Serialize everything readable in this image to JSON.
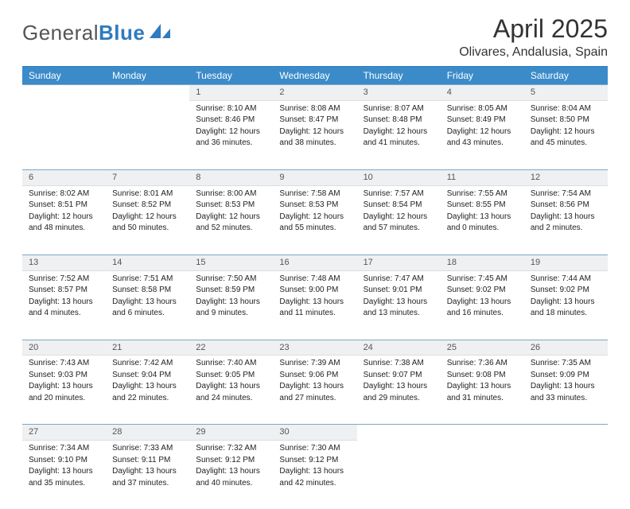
{
  "brand": {
    "part1": "General",
    "part2": "Blue"
  },
  "title": "April 2025",
  "location": "Olivares, Andalusia, Spain",
  "colors": {
    "accent": "#3b8bc9",
    "accent_dark": "#2e7bbf",
    "daynum_bg": "#eef0f1",
    "text": "#222222"
  },
  "day_headers": [
    "Sunday",
    "Monday",
    "Tuesday",
    "Wednesday",
    "Thursday",
    "Friday",
    "Saturday"
  ],
  "weeks": [
    [
      null,
      null,
      {
        "n": "1",
        "sr": "Sunrise: 8:10 AM",
        "ss": "Sunset: 8:46 PM",
        "dl1": "Daylight: 12 hours",
        "dl2": "and 36 minutes."
      },
      {
        "n": "2",
        "sr": "Sunrise: 8:08 AM",
        "ss": "Sunset: 8:47 PM",
        "dl1": "Daylight: 12 hours",
        "dl2": "and 38 minutes."
      },
      {
        "n": "3",
        "sr": "Sunrise: 8:07 AM",
        "ss": "Sunset: 8:48 PM",
        "dl1": "Daylight: 12 hours",
        "dl2": "and 41 minutes."
      },
      {
        "n": "4",
        "sr": "Sunrise: 8:05 AM",
        "ss": "Sunset: 8:49 PM",
        "dl1": "Daylight: 12 hours",
        "dl2": "and 43 minutes."
      },
      {
        "n": "5",
        "sr": "Sunrise: 8:04 AM",
        "ss": "Sunset: 8:50 PM",
        "dl1": "Daylight: 12 hours",
        "dl2": "and 45 minutes."
      }
    ],
    [
      {
        "n": "6",
        "sr": "Sunrise: 8:02 AM",
        "ss": "Sunset: 8:51 PM",
        "dl1": "Daylight: 12 hours",
        "dl2": "and 48 minutes."
      },
      {
        "n": "7",
        "sr": "Sunrise: 8:01 AM",
        "ss": "Sunset: 8:52 PM",
        "dl1": "Daylight: 12 hours",
        "dl2": "and 50 minutes."
      },
      {
        "n": "8",
        "sr": "Sunrise: 8:00 AM",
        "ss": "Sunset: 8:53 PM",
        "dl1": "Daylight: 12 hours",
        "dl2": "and 52 minutes."
      },
      {
        "n": "9",
        "sr": "Sunrise: 7:58 AM",
        "ss": "Sunset: 8:53 PM",
        "dl1": "Daylight: 12 hours",
        "dl2": "and 55 minutes."
      },
      {
        "n": "10",
        "sr": "Sunrise: 7:57 AM",
        "ss": "Sunset: 8:54 PM",
        "dl1": "Daylight: 12 hours",
        "dl2": "and 57 minutes."
      },
      {
        "n": "11",
        "sr": "Sunrise: 7:55 AM",
        "ss": "Sunset: 8:55 PM",
        "dl1": "Daylight: 13 hours",
        "dl2": "and 0 minutes."
      },
      {
        "n": "12",
        "sr": "Sunrise: 7:54 AM",
        "ss": "Sunset: 8:56 PM",
        "dl1": "Daylight: 13 hours",
        "dl2": "and 2 minutes."
      }
    ],
    [
      {
        "n": "13",
        "sr": "Sunrise: 7:52 AM",
        "ss": "Sunset: 8:57 PM",
        "dl1": "Daylight: 13 hours",
        "dl2": "and 4 minutes."
      },
      {
        "n": "14",
        "sr": "Sunrise: 7:51 AM",
        "ss": "Sunset: 8:58 PM",
        "dl1": "Daylight: 13 hours",
        "dl2": "and 6 minutes."
      },
      {
        "n": "15",
        "sr": "Sunrise: 7:50 AM",
        "ss": "Sunset: 8:59 PM",
        "dl1": "Daylight: 13 hours",
        "dl2": "and 9 minutes."
      },
      {
        "n": "16",
        "sr": "Sunrise: 7:48 AM",
        "ss": "Sunset: 9:00 PM",
        "dl1": "Daylight: 13 hours",
        "dl2": "and 11 minutes."
      },
      {
        "n": "17",
        "sr": "Sunrise: 7:47 AM",
        "ss": "Sunset: 9:01 PM",
        "dl1": "Daylight: 13 hours",
        "dl2": "and 13 minutes."
      },
      {
        "n": "18",
        "sr": "Sunrise: 7:45 AM",
        "ss": "Sunset: 9:02 PM",
        "dl1": "Daylight: 13 hours",
        "dl2": "and 16 minutes."
      },
      {
        "n": "19",
        "sr": "Sunrise: 7:44 AM",
        "ss": "Sunset: 9:02 PM",
        "dl1": "Daylight: 13 hours",
        "dl2": "and 18 minutes."
      }
    ],
    [
      {
        "n": "20",
        "sr": "Sunrise: 7:43 AM",
        "ss": "Sunset: 9:03 PM",
        "dl1": "Daylight: 13 hours",
        "dl2": "and 20 minutes."
      },
      {
        "n": "21",
        "sr": "Sunrise: 7:42 AM",
        "ss": "Sunset: 9:04 PM",
        "dl1": "Daylight: 13 hours",
        "dl2": "and 22 minutes."
      },
      {
        "n": "22",
        "sr": "Sunrise: 7:40 AM",
        "ss": "Sunset: 9:05 PM",
        "dl1": "Daylight: 13 hours",
        "dl2": "and 24 minutes."
      },
      {
        "n": "23",
        "sr": "Sunrise: 7:39 AM",
        "ss": "Sunset: 9:06 PM",
        "dl1": "Daylight: 13 hours",
        "dl2": "and 27 minutes."
      },
      {
        "n": "24",
        "sr": "Sunrise: 7:38 AM",
        "ss": "Sunset: 9:07 PM",
        "dl1": "Daylight: 13 hours",
        "dl2": "and 29 minutes."
      },
      {
        "n": "25",
        "sr": "Sunrise: 7:36 AM",
        "ss": "Sunset: 9:08 PM",
        "dl1": "Daylight: 13 hours",
        "dl2": "and 31 minutes."
      },
      {
        "n": "26",
        "sr": "Sunrise: 7:35 AM",
        "ss": "Sunset: 9:09 PM",
        "dl1": "Daylight: 13 hours",
        "dl2": "and 33 minutes."
      }
    ],
    [
      {
        "n": "27",
        "sr": "Sunrise: 7:34 AM",
        "ss": "Sunset: 9:10 PM",
        "dl1": "Daylight: 13 hours",
        "dl2": "and 35 minutes."
      },
      {
        "n": "28",
        "sr": "Sunrise: 7:33 AM",
        "ss": "Sunset: 9:11 PM",
        "dl1": "Daylight: 13 hours",
        "dl2": "and 37 minutes."
      },
      {
        "n": "29",
        "sr": "Sunrise: 7:32 AM",
        "ss": "Sunset: 9:12 PM",
        "dl1": "Daylight: 13 hours",
        "dl2": "and 40 minutes."
      },
      {
        "n": "30",
        "sr": "Sunrise: 7:30 AM",
        "ss": "Sunset: 9:12 PM",
        "dl1": "Daylight: 13 hours",
        "dl2": "and 42 minutes."
      },
      null,
      null,
      null
    ]
  ]
}
